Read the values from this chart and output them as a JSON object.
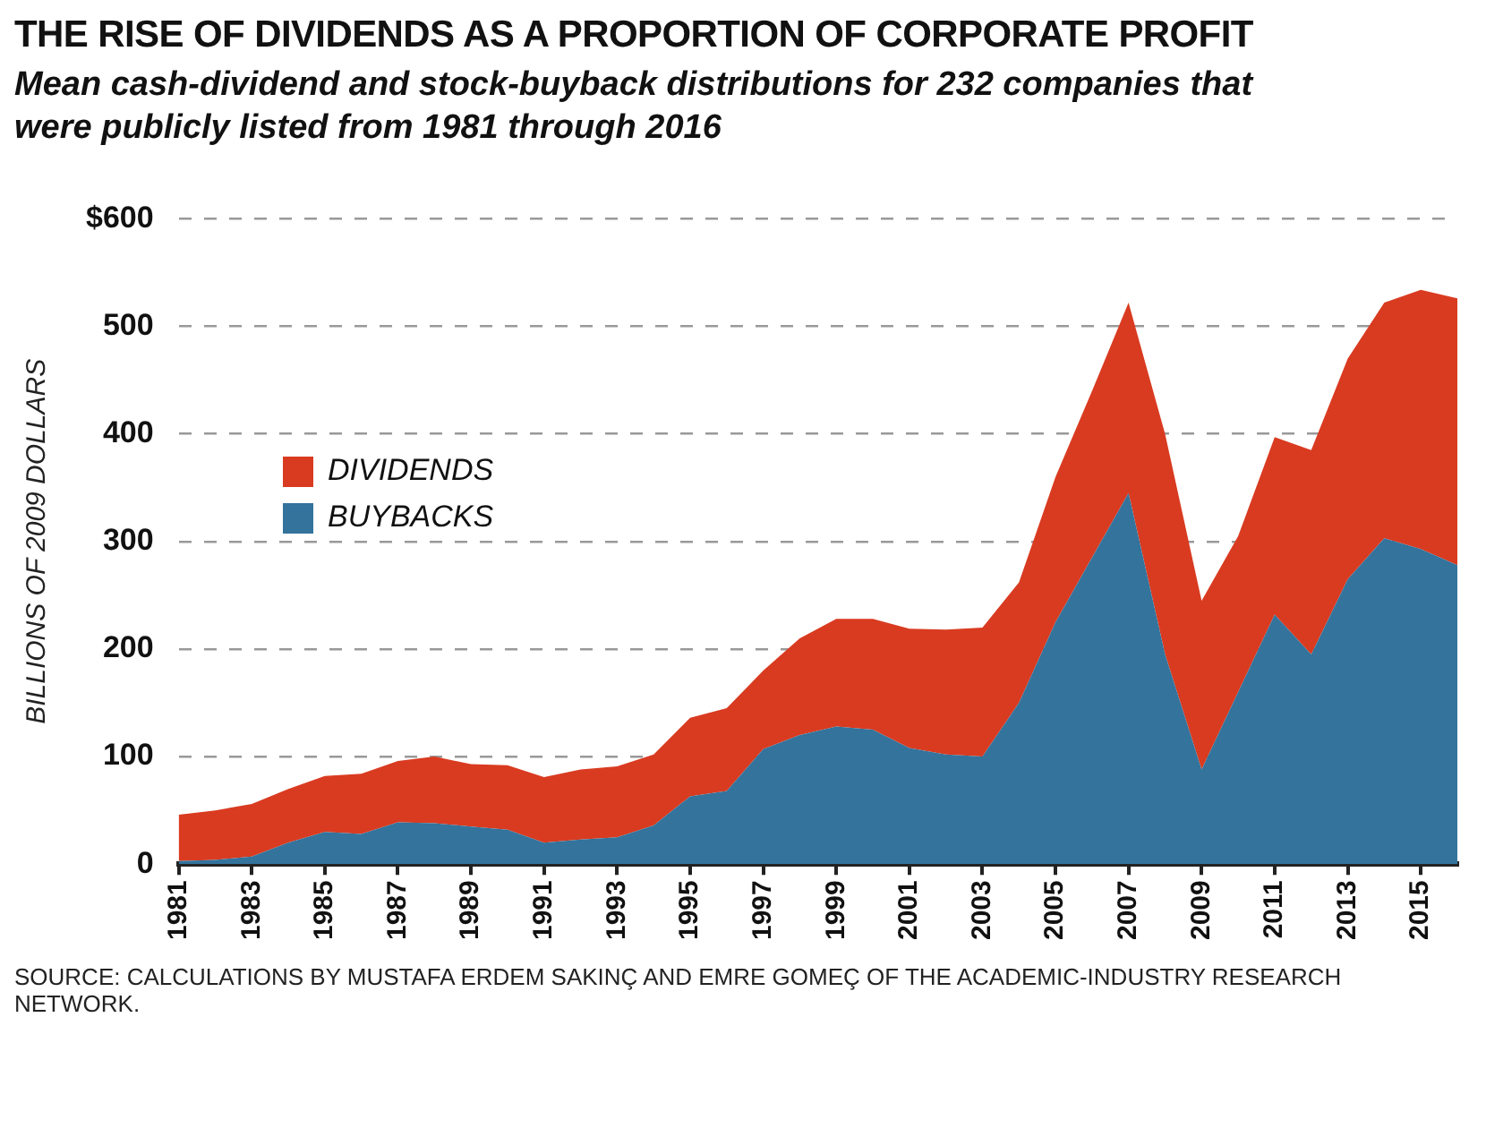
{
  "chart_data": {
    "type": "area",
    "title": "THE RISE OF DIVIDENDS AS A PROPORTION OF CORPORATE PROFIT",
    "subtitle": "Mean cash-dividend and stock-buyback distributions for 232 companies that were publicly listed from 1981 through 2016",
    "ylabel": "BILLIONS OF 2009 DOLLARS",
    "annotations": [
      "SOURCE: CALCULATIONS BY MUSTAFA ERDEM SAKINÇ AND EMRE GOMEÇ OF THE ACADEMIC-INDUSTRY RESEARCH NETWORK."
    ],
    "x": [
      1981,
      1982,
      1983,
      1984,
      1985,
      1986,
      1987,
      1988,
      1989,
      1990,
      1991,
      1992,
      1993,
      1994,
      1995,
      1996,
      1997,
      1998,
      1999,
      2000,
      2001,
      2002,
      2003,
      2004,
      2005,
      2006,
      2007,
      2008,
      2009,
      2010,
      2011,
      2012,
      2013,
      2014,
      2015,
      2016
    ],
    "stacked": true,
    "series": [
      {
        "name": "BUYBACKS",
        "color": "#33739c",
        "values": [
          3,
          4,
          7,
          20,
          30,
          28,
          39,
          38,
          35,
          32,
          20,
          23,
          25,
          36,
          63,
          68,
          107,
          120,
          128,
          125,
          108,
          102,
          100,
          150,
          225,
          285,
          345,
          195,
          88,
          160,
          232,
          195,
          265,
          303,
          293,
          278
        ]
      },
      {
        "name": "DIVIDENDS",
        "color": "#d93b21",
        "values": [
          43,
          46,
          49,
          50,
          52,
          56,
          57,
          62,
          58,
          60,
          61,
          65,
          66,
          66,
          73,
          77,
          73,
          90,
          100,
          103,
          111,
          116,
          120,
          112,
          135,
          155,
          177,
          205,
          157,
          145,
          165,
          190,
          205,
          219,
          241,
          248
        ]
      }
    ],
    "xlim": [
      1981,
      2016
    ],
    "xticks": [
      1981,
      1983,
      1985,
      1987,
      1989,
      1991,
      1993,
      1995,
      1997,
      1999,
      2001,
      2003,
      2005,
      2007,
      2009,
      2011,
      2013,
      2015
    ],
    "ylim": [
      0,
      600
    ],
    "yticks": [
      0,
      100,
      200,
      300,
      400,
      {
        "value": 600,
        "label": "$600"
      },
      500
    ],
    "grid": "y",
    "legend": "left"
  }
}
